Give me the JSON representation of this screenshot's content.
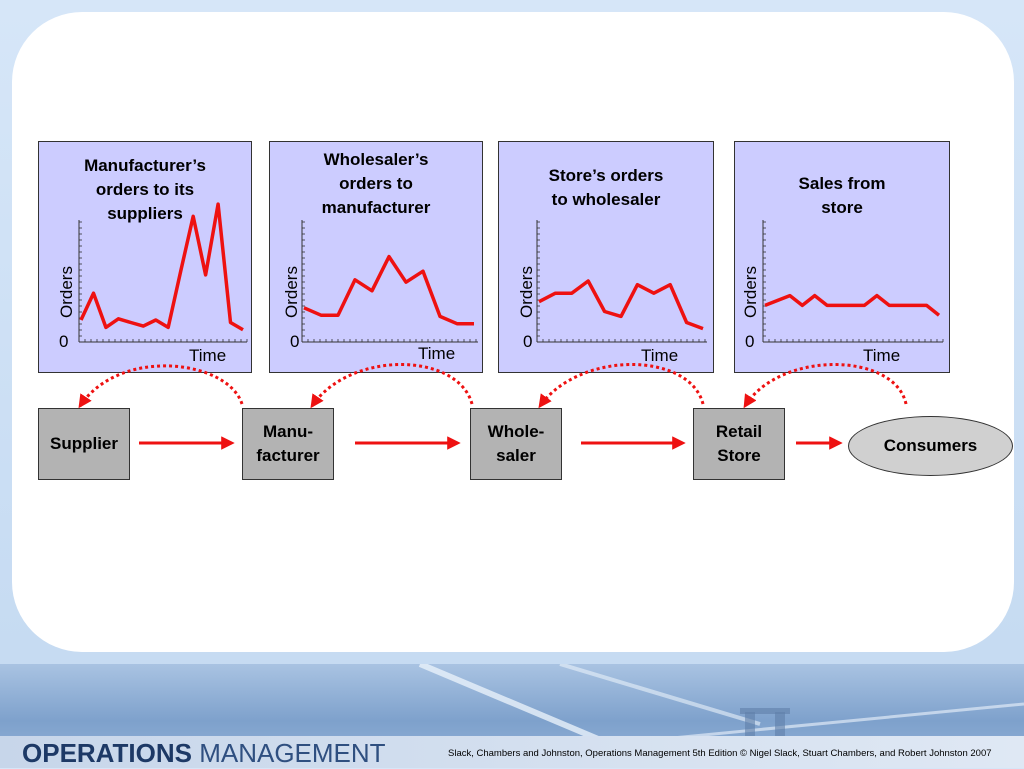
{
  "panels": [
    {
      "title": "Manufacturer’s\norders to its\nsuppliers",
      "ylabel": "Orders",
      "xlabel": "Time",
      "origin": "0",
      "series_color": "#ee1111",
      "values": [
        0.18,
        0.4,
        0.12,
        0.19,
        0.16,
        0.13,
        0.18,
        0.12,
        0.58,
        1.03,
        0.55,
        1.13,
        0.16,
        0.1
      ]
    },
    {
      "title": "Wholesaler’s\norders to\nmanufacturer",
      "ylabel": "Orders",
      "xlabel": "Time",
      "origin": "0",
      "series_color": "#ee1111",
      "values": [
        0.28,
        0.22,
        0.22,
        0.51,
        0.42,
        0.7,
        0.49,
        0.58,
        0.21,
        0.15,
        0.15
      ]
    },
    {
      "title": "Store’s orders\nto wholesaler",
      "ylabel": "Orders",
      "xlabel": "Time",
      "origin": "0",
      "series_color": "#ee1111",
      "values": [
        0.33,
        0.4,
        0.4,
        0.5,
        0.25,
        0.21,
        0.47,
        0.4,
        0.47,
        0.16,
        0.11
      ]
    },
    {
      "title": "Sales from\nstore",
      "ylabel": "Orders",
      "xlabel": "Time",
      "origin": "0",
      "series_color": "#ee1111",
      "values": [
        0.3,
        0.34,
        0.38,
        0.3,
        0.38,
        0.3,
        0.3,
        0.3,
        0.3,
        0.38,
        0.3,
        0.3,
        0.3,
        0.3,
        0.22
      ]
    }
  ],
  "nodes": [
    {
      "label": "Supplier"
    },
    {
      "label": "Manu-\nfacturer"
    },
    {
      "label": "Whole-\nsaler"
    },
    {
      "label": "Retail\nStore"
    }
  ],
  "consumers": {
    "label": "Consumers"
  },
  "colors": {
    "arrow": "#ee1111",
    "panel_bg": "#ccccff",
    "box_bg": "#b3b3b3"
  },
  "footer": {
    "brand_bold": "OPERATIONS",
    "brand_light": "MANAGEMENT",
    "credit": "Slack, Chambers and Johnston, Operations Management 5th Edition © Nigel Slack, Stuart Chambers, and Robert Johnston 2007"
  }
}
